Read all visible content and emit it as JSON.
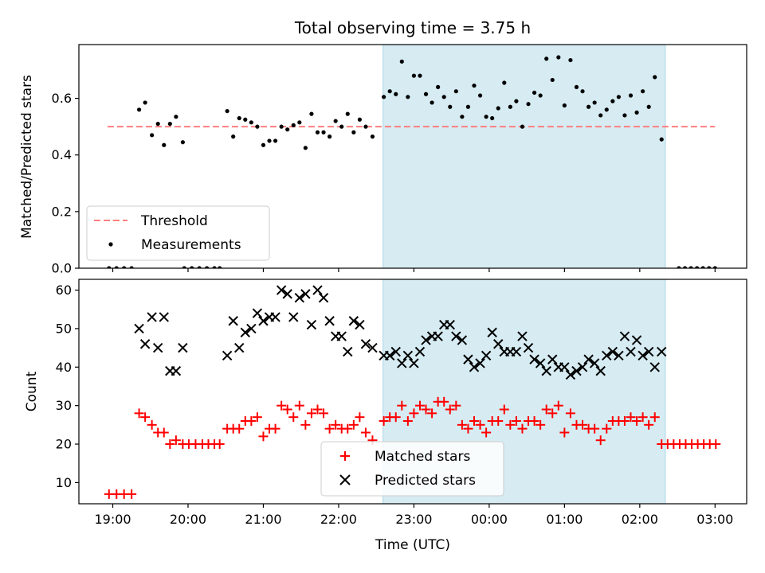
{
  "chart_data": {
    "type": "scatter",
    "title": "Total observing time = 3.75 h",
    "xlabel": "Time (UTC)",
    "x_unit": "hours since 19:00 UTC",
    "xticks": [
      "19:00",
      "20:00",
      "21:00",
      "22:00",
      "23:00",
      "00:00",
      "01:00",
      "02:00",
      "03:00"
    ],
    "xlim_hours": [
      -0.45,
      8.42
    ],
    "observing_window_hours": [
      3.59,
      7.34
    ],
    "colors": {
      "window": "#add8e6",
      "threshold": "#ff7f7f",
      "measurements": "#000000",
      "matched": "#ff0000",
      "predicted": "#000000"
    },
    "top_panel": {
      "ylabel": "Matched/Predicted stars",
      "ylim": [
        0,
        0.79
      ],
      "yticks": [
        "0.0",
        "0.2",
        "0.4",
        "0.6"
      ],
      "threshold": {
        "name": "Threshold",
        "y": 0.5,
        "x_range": [
          -0.07,
          8.0
        ]
      },
      "legend": [
        "Threshold",
        "Measurements"
      ],
      "measurements": {
        "name": "Measurements",
        "points": [
          [
            -0.05,
            0
          ],
          [
            0.05,
            0
          ],
          [
            0.15,
            0
          ],
          [
            0.25,
            0
          ],
          [
            0.35,
            0.56
          ],
          [
            0.43,
            0.585
          ],
          [
            0.52,
            0.47
          ],
          [
            0.6,
            0.51
          ],
          [
            0.68,
            0.435
          ],
          [
            0.76,
            0.51
          ],
          [
            0.84,
            0.535
          ],
          [
            0.93,
            0.445
          ],
          [
            0.95,
            0
          ],
          [
            1.05,
            0
          ],
          [
            1.15,
            0
          ],
          [
            1.25,
            0
          ],
          [
            1.35,
            0
          ],
          [
            1.42,
            0
          ],
          [
            1.52,
            0.555
          ],
          [
            1.6,
            0.465
          ],
          [
            1.68,
            0.53
          ],
          [
            1.76,
            0.525
          ],
          [
            1.84,
            0.515
          ],
          [
            1.92,
            0.5
          ],
          [
            2.0,
            0.435
          ],
          [
            2.08,
            0.45
          ],
          [
            2.16,
            0.45
          ],
          [
            2.24,
            0.5
          ],
          [
            2.32,
            0.49
          ],
          [
            2.4,
            0.505
          ],
          [
            2.48,
            0.515
          ],
          [
            2.56,
            0.425
          ],
          [
            2.64,
            0.545
          ],
          [
            2.72,
            0.48
          ],
          [
            2.8,
            0.48
          ],
          [
            2.88,
            0.465
          ],
          [
            2.96,
            0.52
          ],
          [
            3.04,
            0.5
          ],
          [
            3.12,
            0.545
          ],
          [
            3.2,
            0.48
          ],
          [
            3.28,
            0.525
          ],
          [
            3.36,
            0.5
          ],
          [
            3.45,
            0.465
          ],
          [
            3.6,
            0.605
          ],
          [
            3.68,
            0.625
          ],
          [
            3.76,
            0.615
          ],
          [
            3.84,
            0.73
          ],
          [
            3.92,
            0.605
          ],
          [
            4.0,
            0.68
          ],
          [
            4.08,
            0.68
          ],
          [
            4.16,
            0.615
          ],
          [
            4.24,
            0.585
          ],
          [
            4.32,
            0.64
          ],
          [
            4.4,
            0.605
          ],
          [
            4.48,
            0.57
          ],
          [
            4.56,
            0.625
          ],
          [
            4.64,
            0.535
          ],
          [
            4.72,
            0.57
          ],
          [
            4.8,
            0.645
          ],
          [
            4.88,
            0.61
          ],
          [
            4.96,
            0.535
          ],
          [
            5.04,
            0.53
          ],
          [
            5.12,
            0.565
          ],
          [
            5.2,
            0.655
          ],
          [
            5.28,
            0.57
          ],
          [
            5.36,
            0.59
          ],
          [
            5.44,
            0.5
          ],
          [
            5.52,
            0.58
          ],
          [
            5.6,
            0.62
          ],
          [
            5.68,
            0.61
          ],
          [
            5.76,
            0.74
          ],
          [
            5.84,
            0.665
          ],
          [
            5.92,
            0.745
          ],
          [
            6.0,
            0.575
          ],
          [
            6.08,
            0.735
          ],
          [
            6.16,
            0.64
          ],
          [
            6.24,
            0.625
          ],
          [
            6.32,
            0.57
          ],
          [
            6.4,
            0.585
          ],
          [
            6.48,
            0.54
          ],
          [
            6.56,
            0.56
          ],
          [
            6.64,
            0.59
          ],
          [
            6.72,
            0.605
          ],
          [
            6.8,
            0.54
          ],
          [
            6.88,
            0.61
          ],
          [
            6.96,
            0.55
          ],
          [
            7.04,
            0.625
          ],
          [
            7.12,
            0.57
          ],
          [
            7.2,
            0.675
          ],
          [
            7.29,
            0.455
          ],
          [
            7.52,
            0
          ],
          [
            7.6,
            0
          ],
          [
            7.68,
            0
          ],
          [
            7.76,
            0
          ],
          [
            7.84,
            0
          ],
          [
            7.92,
            0
          ],
          [
            8.0,
            0
          ]
        ]
      }
    },
    "bottom_panel": {
      "ylabel": "Count",
      "ylim": [
        4.5,
        62.8
      ],
      "yticks": [
        "10",
        "20",
        "30",
        "40",
        "50",
        "60"
      ],
      "legend": [
        "Matched stars",
        "Predicted stars"
      ],
      "series": [
        {
          "name": "Matched stars",
          "marker": "+",
          "points": [
            [
              -0.05,
              7
            ],
            [
              0.05,
              7
            ],
            [
              0.15,
              7
            ],
            [
              0.25,
              7
            ],
            [
              0.35,
              28
            ],
            [
              0.43,
              27
            ],
            [
              0.52,
              25
            ],
            [
              0.6,
              23
            ],
            [
              0.68,
              23
            ],
            [
              0.76,
              20
            ],
            [
              0.84,
              21
            ],
            [
              0.93,
              20
            ],
            [
              1.01,
              20
            ],
            [
              1.1,
              20
            ],
            [
              1.19,
              20
            ],
            [
              1.27,
              20
            ],
            [
              1.35,
              20
            ],
            [
              1.42,
              20
            ],
            [
              1.52,
              24
            ],
            [
              1.6,
              24
            ],
            [
              1.68,
              24
            ],
            [
              1.76,
              26
            ],
            [
              1.84,
              26
            ],
            [
              1.92,
              27
            ],
            [
              2.0,
              22
            ],
            [
              2.08,
              24
            ],
            [
              2.16,
              24
            ],
            [
              2.24,
              30
            ],
            [
              2.32,
              29
            ],
            [
              2.4,
              27
            ],
            [
              2.48,
              30
            ],
            [
              2.56,
              25
            ],
            [
              2.64,
              28
            ],
            [
              2.72,
              29
            ],
            [
              2.8,
              28
            ],
            [
              2.88,
              24
            ],
            [
              2.96,
              25
            ],
            [
              3.04,
              24
            ],
            [
              3.12,
              24
            ],
            [
              3.2,
              25
            ],
            [
              3.28,
              27
            ],
            [
              3.36,
              23
            ],
            [
              3.45,
              21
            ],
            [
              3.6,
              26
            ],
            [
              3.68,
              27
            ],
            [
              3.76,
              27
            ],
            [
              3.84,
              30
            ],
            [
              3.92,
              26
            ],
            [
              4.0,
              28
            ],
            [
              4.08,
              30
            ],
            [
              4.16,
              29
            ],
            [
              4.24,
              28
            ],
            [
              4.32,
              31
            ],
            [
              4.4,
              31
            ],
            [
              4.48,
              29
            ],
            [
              4.56,
              30
            ],
            [
              4.64,
              25
            ],
            [
              4.72,
              24
            ],
            [
              4.8,
              26
            ],
            [
              4.88,
              25
            ],
            [
              4.96,
              23
            ],
            [
              5.04,
              26
            ],
            [
              5.12,
              26
            ],
            [
              5.2,
              29
            ],
            [
              5.28,
              25
            ],
            [
              5.36,
              26
            ],
            [
              5.44,
              24
            ],
            [
              5.52,
              26
            ],
            [
              5.6,
              26
            ],
            [
              5.68,
              25
            ],
            [
              5.76,
              29
            ],
            [
              5.84,
              28
            ],
            [
              5.92,
              30
            ],
            [
              6.0,
              23
            ],
            [
              6.08,
              28
            ],
            [
              6.16,
              25
            ],
            [
              6.24,
              25
            ],
            [
              6.32,
              24
            ],
            [
              6.4,
              24
            ],
            [
              6.48,
              21
            ],
            [
              6.56,
              24
            ],
            [
              6.64,
              26
            ],
            [
              6.72,
              26
            ],
            [
              6.8,
              26
            ],
            [
              6.88,
              27
            ],
            [
              6.96,
              26
            ],
            [
              7.04,
              27
            ],
            [
              7.12,
              25
            ],
            [
              7.2,
              27
            ],
            [
              7.29,
              20
            ],
            [
              7.37,
              20
            ],
            [
              7.45,
              20
            ],
            [
              7.53,
              20
            ],
            [
              7.61,
              20
            ],
            [
              7.69,
              20
            ],
            [
              7.77,
              20
            ],
            [
              7.85,
              20
            ],
            [
              7.93,
              20
            ],
            [
              8.01,
              20
            ]
          ]
        },
        {
          "name": "Predicted stars",
          "marker": "x",
          "points": [
            [
              0.35,
              50
            ],
            [
              0.43,
              46
            ],
            [
              0.52,
              53
            ],
            [
              0.6,
              45
            ],
            [
              0.68,
              53
            ],
            [
              0.76,
              39
            ],
            [
              0.84,
              39
            ],
            [
              0.93,
              45
            ],
            [
              1.52,
              43
            ],
            [
              1.6,
              52
            ],
            [
              1.68,
              45
            ],
            [
              1.76,
              49
            ],
            [
              1.84,
              50
            ],
            [
              1.92,
              54
            ],
            [
              2.0,
              52
            ],
            [
              2.08,
              53
            ],
            [
              2.16,
              53
            ],
            [
              2.24,
              60
            ],
            [
              2.32,
              59
            ],
            [
              2.4,
              53
            ],
            [
              2.48,
              58
            ],
            [
              2.56,
              59
            ],
            [
              2.64,
              51
            ],
            [
              2.72,
              60
            ],
            [
              2.8,
              58
            ],
            [
              2.88,
              52
            ],
            [
              2.96,
              48
            ],
            [
              3.04,
              48
            ],
            [
              3.12,
              44
            ],
            [
              3.2,
              52
            ],
            [
              3.28,
              51
            ],
            [
              3.36,
              46
            ],
            [
              3.45,
              45
            ],
            [
              3.6,
              43
            ],
            [
              3.68,
              43
            ],
            [
              3.76,
              44
            ],
            [
              3.84,
              41
            ],
            [
              3.92,
              43
            ],
            [
              4.0,
              41
            ],
            [
              4.08,
              44
            ],
            [
              4.16,
              47
            ],
            [
              4.24,
              48
            ],
            [
              4.32,
              48
            ],
            [
              4.4,
              51
            ],
            [
              4.48,
              51
            ],
            [
              4.56,
              48
            ],
            [
              4.64,
              47
            ],
            [
              4.72,
              42
            ],
            [
              4.8,
              40
            ],
            [
              4.88,
              41
            ],
            [
              4.96,
              43
            ],
            [
              5.04,
              49
            ],
            [
              5.12,
              46
            ],
            [
              5.2,
              44
            ],
            [
              5.28,
              44
            ],
            [
              5.36,
              44
            ],
            [
              5.44,
              48
            ],
            [
              5.52,
              45
            ],
            [
              5.6,
              42
            ],
            [
              5.68,
              41
            ],
            [
              5.76,
              39
            ],
            [
              5.84,
              42
            ],
            [
              5.92,
              40
            ],
            [
              6.0,
              40
            ],
            [
              6.08,
              38
            ],
            [
              6.16,
              39
            ],
            [
              6.24,
              40
            ],
            [
              6.32,
              42
            ],
            [
              6.4,
              41
            ],
            [
              6.48,
              39
            ],
            [
              6.56,
              43
            ],
            [
              6.64,
              44
            ],
            [
              6.72,
              43
            ],
            [
              6.8,
              48
            ],
            [
              6.88,
              44
            ],
            [
              6.96,
              47
            ],
            [
              7.04,
              43
            ],
            [
              7.12,
              44
            ],
            [
              7.2,
              40
            ],
            [
              7.29,
              44
            ]
          ]
        }
      ]
    }
  }
}
